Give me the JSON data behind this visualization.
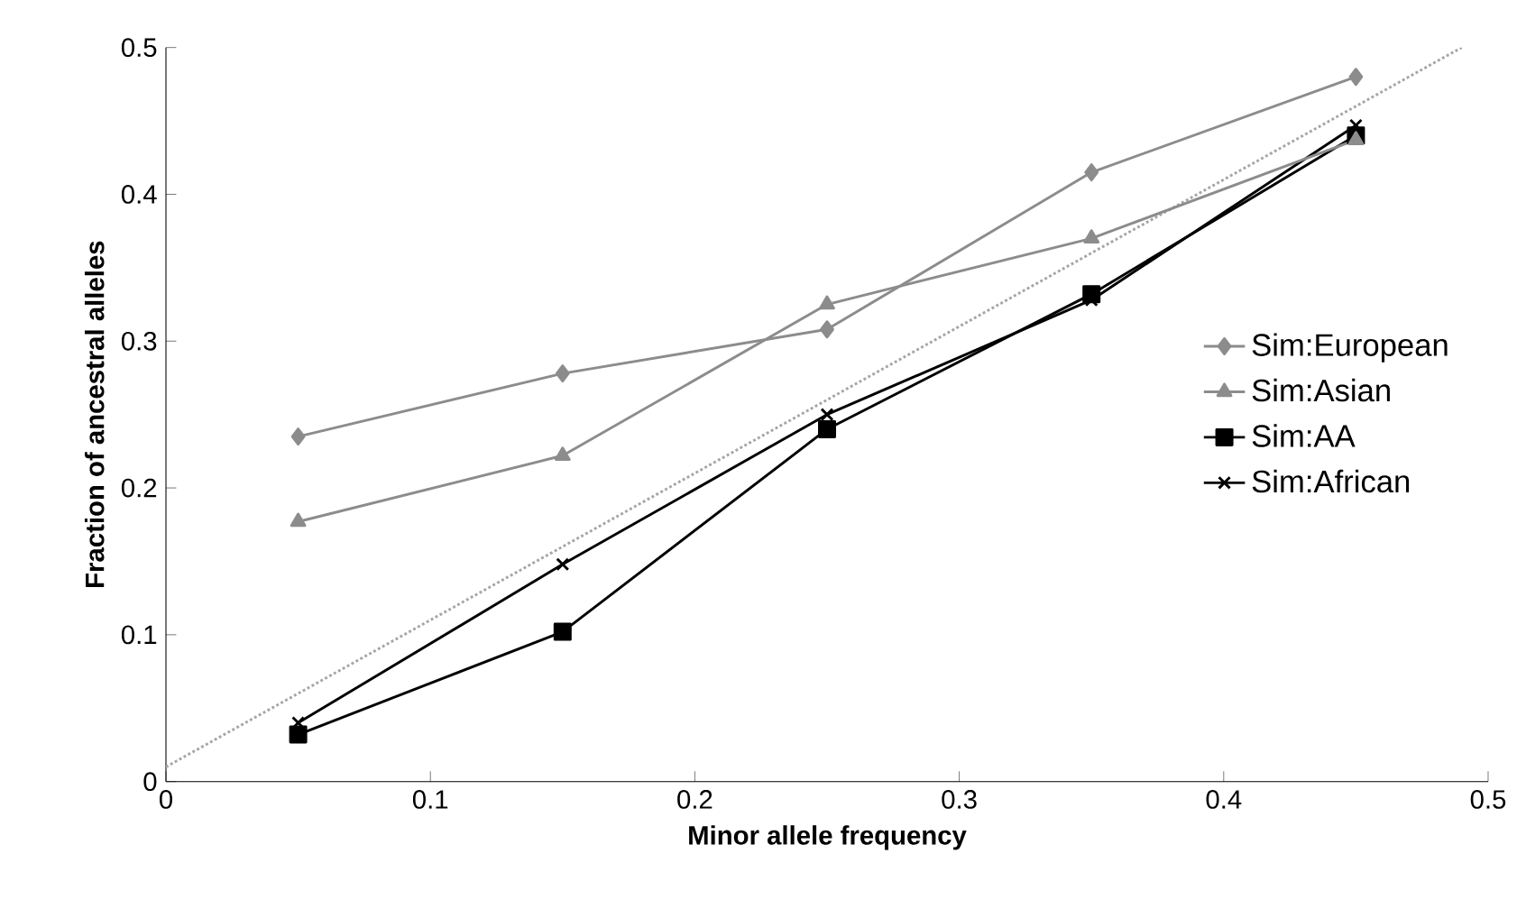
{
  "chart_data": {
    "type": "line",
    "xlabel": "Minor allele frequency",
    "ylabel": "Fraction of ancestral alleles",
    "xlim": [
      0,
      0.5
    ],
    "ylim": [
      0,
      0.5
    ],
    "xticks": [
      0,
      0.1,
      0.2,
      0.3,
      0.4,
      0.5
    ],
    "yticks": [
      0,
      0.1,
      0.2,
      0.3,
      0.4,
      0.5
    ],
    "x": [
      0.05,
      0.15,
      0.25,
      0.35,
      0.45
    ],
    "legend": "right",
    "grid": false,
    "series": [
      {
        "name": "Sim:European",
        "color": "#8c8c8c",
        "marker": "diamond",
        "line_style": "solid",
        "values": [
          0.235,
          0.278,
          0.308,
          0.415,
          0.48
        ]
      },
      {
        "name": "Sim:Asian",
        "color": "#8c8c8c",
        "marker": "triangle",
        "line_style": "solid",
        "values": [
          0.177,
          0.222,
          0.325,
          0.37,
          0.437
        ]
      },
      {
        "name": "Sim:AA",
        "color": "#000000",
        "marker": "square",
        "line_style": "solid",
        "values": [
          0.032,
          0.102,
          0.24,
          0.332,
          0.44
        ]
      },
      {
        "name": "Sim:African",
        "color": "#000000",
        "marker": "cross",
        "line_style": "solid",
        "values": [
          0.04,
          0.148,
          0.25,
          0.328,
          0.447
        ]
      },
      {
        "type": "line",
        "color": "#a6a6a6",
        "marker": "none",
        "line_style": "dotted",
        "x": [
          0,
          0.49
        ],
        "values": [
          0.01,
          0.5
        ]
      }
    ]
  }
}
